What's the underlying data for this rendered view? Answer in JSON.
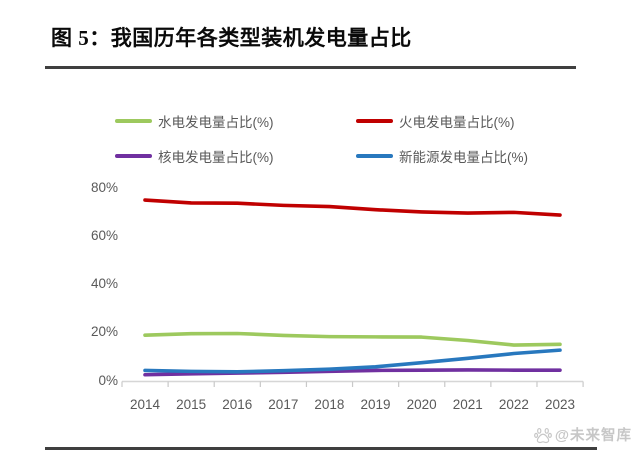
{
  "page": {
    "title": "图 5：我国历年各类型装机发电量占比",
    "watermark": "@未来智库"
  },
  "chart_data": {
    "type": "line",
    "title": "我国历年各类型装机发电量占比",
    "categories": [
      "2014",
      "2015",
      "2016",
      "2017",
      "2018",
      "2019",
      "2020",
      "2021",
      "2022",
      "2023"
    ],
    "series": [
      {
        "name": "水电发电量占比(%)",
        "color": "#9DC95E",
        "values": [
          19.2,
          19.8,
          19.9,
          19.1,
          18.6,
          18.5,
          18.4,
          17.0,
          15.1,
          15.4
        ]
      },
      {
        "name": "火电发电量占比(%)",
        "color": "#C00000",
        "values": [
          75.2,
          74.0,
          73.9,
          73.0,
          72.5,
          71.2,
          70.3,
          69.8,
          70.1,
          69.0
        ]
      },
      {
        "name": "核电发电量占比(%)",
        "color": "#7030A0",
        "values": [
          2.8,
          3.2,
          3.5,
          3.8,
          4.2,
          4.6,
          4.7,
          4.8,
          4.7,
          4.7
        ]
      },
      {
        "name": "新能源发电量占比(%)",
        "color": "#2878BE",
        "values": [
          4.6,
          4.2,
          4.0,
          4.5,
          5.1,
          6.1,
          7.8,
          9.6,
          11.6,
          13.0
        ]
      }
    ],
    "yticks": [
      "0%",
      "20%",
      "40%",
      "60%",
      "80%"
    ],
    "ylim": [
      0,
      80
    ],
    "xlabel": "",
    "ylabel": "",
    "grid": false,
    "legend_position": "top"
  }
}
